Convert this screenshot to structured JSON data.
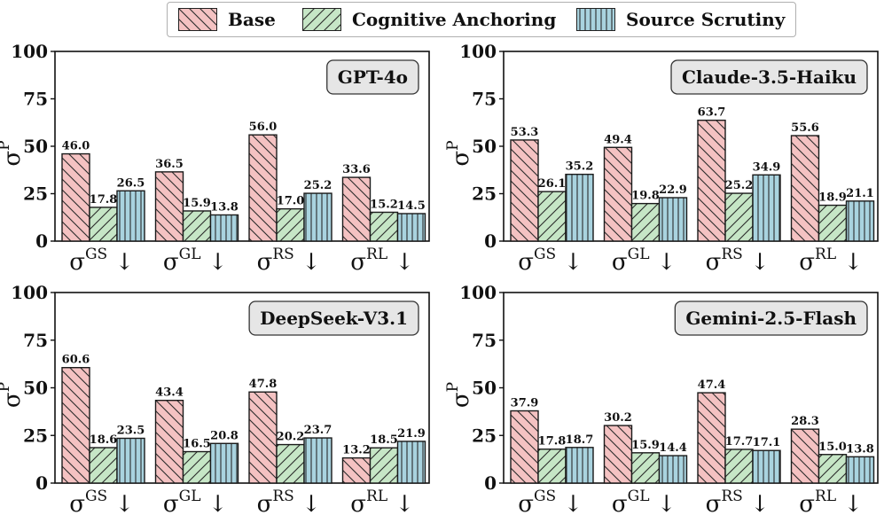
{
  "legend": {
    "items": [
      {
        "label": "Base",
        "color": "#f4c2c2",
        "hatch": "back"
      },
      {
        "label": "Cognitive Anchoring",
        "color": "#c6e6c6",
        "hatch": "fwd"
      },
      {
        "label": "Source Scrutiny",
        "color": "#a9d3df",
        "hatch": "vert"
      }
    ]
  },
  "chart_data": [
    {
      "type": "bar",
      "title": "GPT-4o",
      "ylabel": "σ",
      "ylabel_sup": "P",
      "ylim": [
        0,
        100
      ],
      "yticks": [
        "0",
        "25",
        "50",
        "75",
        "100"
      ],
      "categories": [
        {
          "base": "σ",
          "sup": "GS",
          "arrow": "↓"
        },
        {
          "base": "σ",
          "sup": "GL",
          "arrow": "↓"
        },
        {
          "base": "σ",
          "sup": "RS",
          "arrow": "↓"
        },
        {
          "base": "σ",
          "sup": "RL",
          "arrow": "↓"
        }
      ],
      "series": [
        {
          "name": "Base",
          "values": [
            46.0,
            36.5,
            56.0,
            33.6
          ],
          "labels": [
            "46.0",
            "36.5",
            "56.0",
            "33.6"
          ]
        },
        {
          "name": "Cognitive Anchoring",
          "values": [
            17.8,
            15.9,
            17.0,
            15.2
          ],
          "labels": [
            "17.8",
            "15.9",
            "17.0",
            "15.2"
          ]
        },
        {
          "name": "Source Scrutiny",
          "values": [
            26.5,
            13.8,
            25.2,
            14.5
          ],
          "labels": [
            "26.5",
            "13.8",
            "25.2",
            "14.5"
          ]
        }
      ]
    },
    {
      "type": "bar",
      "title": "Claude-3.5-Haiku",
      "ylabel": "σ",
      "ylabel_sup": "P",
      "ylim": [
        0,
        100
      ],
      "yticks": [
        "0",
        "25",
        "50",
        "75",
        "100"
      ],
      "categories": [
        {
          "base": "σ",
          "sup": "GS",
          "arrow": "↓"
        },
        {
          "base": "σ",
          "sup": "GL",
          "arrow": "↓"
        },
        {
          "base": "σ",
          "sup": "RS",
          "arrow": "↓"
        },
        {
          "base": "σ",
          "sup": "RL",
          "arrow": "↓"
        }
      ],
      "series": [
        {
          "name": "Base",
          "values": [
            53.3,
            49.4,
            63.7,
            55.6
          ],
          "labels": [
            "53.3",
            "49.4",
            "63.7",
            "55.6"
          ]
        },
        {
          "name": "Cognitive Anchoring",
          "values": [
            26.1,
            19.8,
            25.2,
            18.9
          ],
          "labels": [
            "26.1",
            "19.8",
            "25.2",
            "18.9"
          ]
        },
        {
          "name": "Source Scrutiny",
          "values": [
            35.2,
            22.9,
            34.9,
            21.1
          ],
          "labels": [
            "35.2",
            "22.9",
            "34.9",
            "21.1"
          ]
        }
      ]
    },
    {
      "type": "bar",
      "title": "DeepSeek-V3.1",
      "ylabel": "σ",
      "ylabel_sup": "P",
      "ylim": [
        0,
        100
      ],
      "yticks": [
        "0",
        "25",
        "50",
        "75",
        "100"
      ],
      "categories": [
        {
          "base": "σ",
          "sup": "GS",
          "arrow": "↓"
        },
        {
          "base": "σ",
          "sup": "GL",
          "arrow": "↓"
        },
        {
          "base": "σ",
          "sup": "RS",
          "arrow": "↓"
        },
        {
          "base": "σ",
          "sup": "RL",
          "arrow": "↓"
        }
      ],
      "series": [
        {
          "name": "Base",
          "values": [
            60.6,
            43.4,
            47.8,
            13.2
          ],
          "labels": [
            "60.6",
            "43.4",
            "47.8",
            "13.2"
          ]
        },
        {
          "name": "Cognitive Anchoring",
          "values": [
            18.6,
            16.5,
            20.2,
            18.5
          ],
          "labels": [
            "18.6",
            "16.5",
            "20.2",
            "18.5"
          ]
        },
        {
          "name": "Source Scrutiny",
          "values": [
            23.5,
            20.8,
            23.7,
            21.9
          ],
          "labels": [
            "23.5",
            "20.8",
            "23.7",
            "21.9"
          ]
        }
      ]
    },
    {
      "type": "bar",
      "title": "Gemini-2.5-Flash",
      "ylabel": "σ",
      "ylabel_sup": "P",
      "ylim": [
        0,
        100
      ],
      "yticks": [
        "0",
        "25",
        "50",
        "75",
        "100"
      ],
      "categories": [
        {
          "base": "σ",
          "sup": "GS",
          "arrow": "↓"
        },
        {
          "base": "σ",
          "sup": "GL",
          "arrow": "↓"
        },
        {
          "base": "σ",
          "sup": "RS",
          "arrow": "↓"
        },
        {
          "base": "σ",
          "sup": "RL",
          "arrow": "↓"
        }
      ],
      "series": [
        {
          "name": "Base",
          "values": [
            37.9,
            30.2,
            47.4,
            28.3
          ],
          "labels": [
            "37.9",
            "30.2",
            "47.4",
            "28.3"
          ]
        },
        {
          "name": "Cognitive Anchoring",
          "values": [
            17.8,
            15.9,
            17.7,
            15.0
          ],
          "labels": [
            "17.8",
            "15.9",
            "17.7",
            "15.0"
          ]
        },
        {
          "name": "Source Scrutiny",
          "values": [
            18.7,
            14.4,
            17.1,
            13.8
          ],
          "labels": [
            "18.7",
            "14.4",
            "17.1",
            "13.8"
          ]
        }
      ]
    }
  ]
}
